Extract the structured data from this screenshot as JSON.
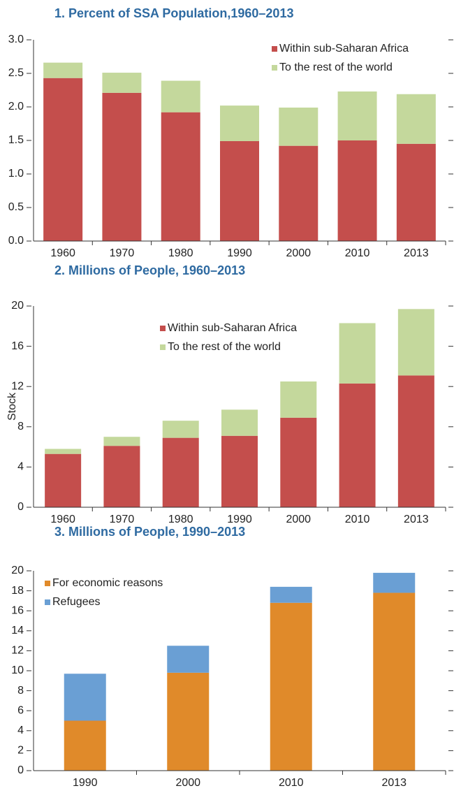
{
  "chart_data": [
    {
      "type": "bar",
      "stacked": true,
      "title": "1. Percent of SSA Population,1960–2013",
      "categories": [
        "1960",
        "1970",
        "1980",
        "1990",
        "2000",
        "2010",
        "2013"
      ],
      "series": [
        {
          "name": "Within sub-Saharan Africa",
          "color": "#c44e4c",
          "values": [
            2.43,
            2.21,
            1.92,
            1.49,
            1.42,
            1.5,
            1.45
          ]
        },
        {
          "name": "To the rest of the world",
          "color": "#c4d89c",
          "values": [
            0.23,
            0.3,
            0.47,
            0.53,
            0.57,
            0.73,
            0.74
          ]
        }
      ],
      "ylim": [
        0,
        3
      ],
      "yticks": [
        {
          "value": 0,
          "label": "0.0"
        },
        {
          "value": 0.5,
          "label": "0.5"
        },
        {
          "value": 1,
          "label": "1.0"
        },
        {
          "value": 1.5,
          "label": "1.5"
        },
        {
          "value": 2,
          "label": "2.0"
        },
        {
          "value": 2.5,
          "label": "2.5"
        },
        {
          "value": 3,
          "label": "3.0"
        }
      ]
    },
    {
      "type": "bar",
      "stacked": true,
      "title": "2. Millions of People, 1960–2013",
      "ylabel": "Stock",
      "categories": [
        "1960",
        "1970",
        "1980",
        "1990",
        "2000",
        "2010",
        "2013"
      ],
      "series": [
        {
          "name": "Within sub-Saharan Africa",
          "color": "#c44e4c",
          "values": [
            5.3,
            6.1,
            6.9,
            7.1,
            8.9,
            12.3,
            13.1
          ]
        },
        {
          "name": "To the rest of the world",
          "color": "#c4d89c",
          "values": [
            0.5,
            0.9,
            1.7,
            2.6,
            3.6,
            6.0,
            6.6
          ]
        }
      ],
      "ylim": [
        0,
        20
      ],
      "yticks": [
        0,
        4,
        8,
        12,
        16,
        20
      ]
    },
    {
      "type": "bar",
      "stacked": true,
      "title": "3. Millions of People, 1990–2013",
      "categories": [
        "1990",
        "2000",
        "2010",
        "2013"
      ],
      "series": [
        {
          "name": "For economic reasons",
          "color": "#e08a2a",
          "values": [
            5.0,
            9.8,
            16.8,
            17.8
          ]
        },
        {
          "name": "Refugees",
          "color": "#6a9fd4",
          "values": [
            4.7,
            2.7,
            1.6,
            2.0
          ]
        }
      ],
      "ylim": [
        0,
        20
      ],
      "yticks": [
        0,
        2,
        4,
        6,
        8,
        10,
        12,
        14,
        16,
        18,
        20
      ]
    }
  ]
}
